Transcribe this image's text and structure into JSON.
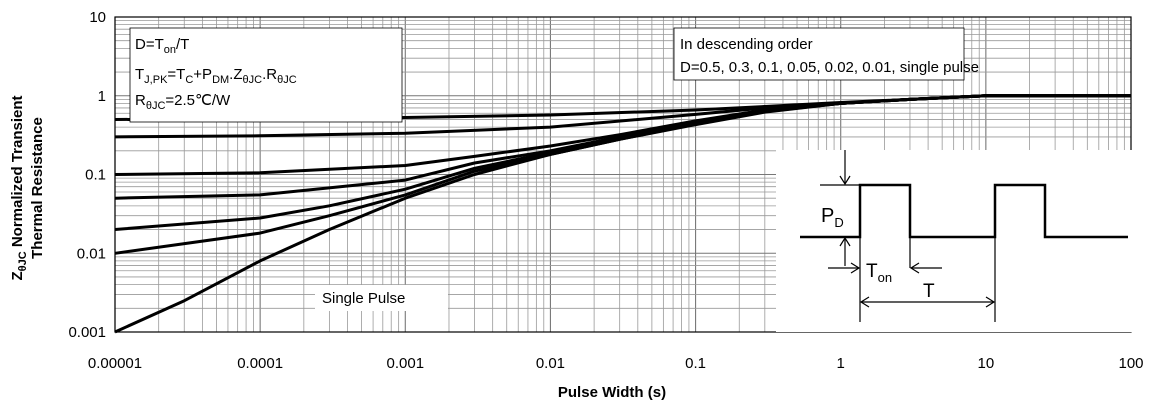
{
  "chart_data": {
    "type": "line",
    "title": "",
    "xlabel": "Pulse Width (s)",
    "ylabel_line1_main": "Z",
    "ylabel_line1_sub": "θJC",
    "ylabel_line1_rest": " Normalized Transient",
    "ylabel_line2": "Thermal Resistance",
    "x_scale": "log",
    "y_scale": "log",
    "xlim": [
      1e-05,
      100
    ],
    "ylim": [
      0.001,
      10
    ],
    "grid": true,
    "x_ticks": [
      "0.00001",
      "0.0001",
      "0.001",
      "0.01",
      "0.1",
      "1",
      "10",
      "100"
    ],
    "y_ticks": [
      "0.001",
      "0.01",
      "0.1",
      "1",
      "10"
    ],
    "series": [
      {
        "x": [
          1e-05,
          0.0001,
          0.001,
          0.01,
          0.1,
          0.3,
          1,
          3,
          10,
          100
        ],
        "y": [
          0.5,
          0.51,
          0.53,
          0.57,
          0.66,
          0.73,
          0.82,
          0.9,
          1.0,
          1.0
        ]
      },
      {
        "x": [
          1e-05,
          0.0001,
          0.001,
          0.01,
          0.1,
          0.3,
          1,
          3,
          10,
          100
        ],
        "y": [
          0.3,
          0.31,
          0.335,
          0.4,
          0.58,
          0.7,
          0.8,
          0.9,
          1.0,
          1.0
        ]
      },
      {
        "x": [
          1e-05,
          0.0001,
          0.001,
          0.003,
          0.01,
          0.03,
          0.1,
          0.3,
          1,
          3,
          10,
          100
        ],
        "y": [
          0.1,
          0.105,
          0.13,
          0.17,
          0.23,
          0.32,
          0.48,
          0.66,
          0.8,
          0.9,
          1.0,
          1.0
        ]
      },
      {
        "x": [
          1e-05,
          0.0001,
          0.001,
          0.003,
          0.01,
          0.03,
          0.1,
          0.3,
          1,
          3,
          10,
          100
        ],
        "y": [
          0.05,
          0.055,
          0.085,
          0.14,
          0.2,
          0.3,
          0.46,
          0.65,
          0.8,
          0.9,
          1.0,
          1.0
        ]
      },
      {
        "x": [
          1e-05,
          0.0001,
          0.0003,
          0.001,
          0.003,
          0.01,
          0.03,
          0.1,
          0.3,
          1,
          3,
          10,
          100
        ],
        "y": [
          0.02,
          0.028,
          0.04,
          0.065,
          0.12,
          0.19,
          0.29,
          0.45,
          0.64,
          0.8,
          0.9,
          1.0,
          1.0
        ]
      },
      {
        "x": [
          1e-05,
          0.0001,
          0.0003,
          0.001,
          0.003,
          0.01,
          0.03,
          0.1,
          0.3,
          1,
          3,
          10,
          100
        ],
        "y": [
          0.01,
          0.018,
          0.03,
          0.055,
          0.11,
          0.18,
          0.28,
          0.44,
          0.63,
          0.8,
          0.9,
          1.0,
          1.0
        ]
      },
      {
        "x": [
          1e-05,
          3e-05,
          0.0001,
          0.0003,
          0.001,
          0.003,
          0.01,
          0.03,
          0.1,
          0.3,
          1,
          3,
          10,
          100
        ],
        "y": [
          0.001,
          0.0025,
          0.008,
          0.02,
          0.05,
          0.1,
          0.18,
          0.28,
          0.43,
          0.62,
          0.8,
          0.9,
          1.0,
          1.0
        ]
      }
    ],
    "annotations": {
      "top_left": {
        "line1": {
          "pre": "D=T",
          "sub": "on",
          "post": "/T"
        },
        "line2": {
          "t1": "T",
          "s1": "J,PK",
          "t2": "=T",
          "s2": "C",
          "t3": "+P",
          "s3": "DM",
          "t4": ".Z",
          "s4": "θJC",
          "t5": ".R",
          "s5": "θJC"
        },
        "line3": {
          "pre": "R",
          "sub": "θJC",
          "post": "=2.5℃/W"
        }
      },
      "top_right": {
        "line1": "In descending order",
        "line2": "D=0.5, 0.3, 0.1, 0.05, 0.02, 0.01, single pulse"
      },
      "single_pulse_label": "Single Pulse",
      "inset": {
        "pd_main": "P",
        "pd_sub": "D",
        "ton_main": "T",
        "ton_sub": "on",
        "period": "T"
      }
    }
  }
}
